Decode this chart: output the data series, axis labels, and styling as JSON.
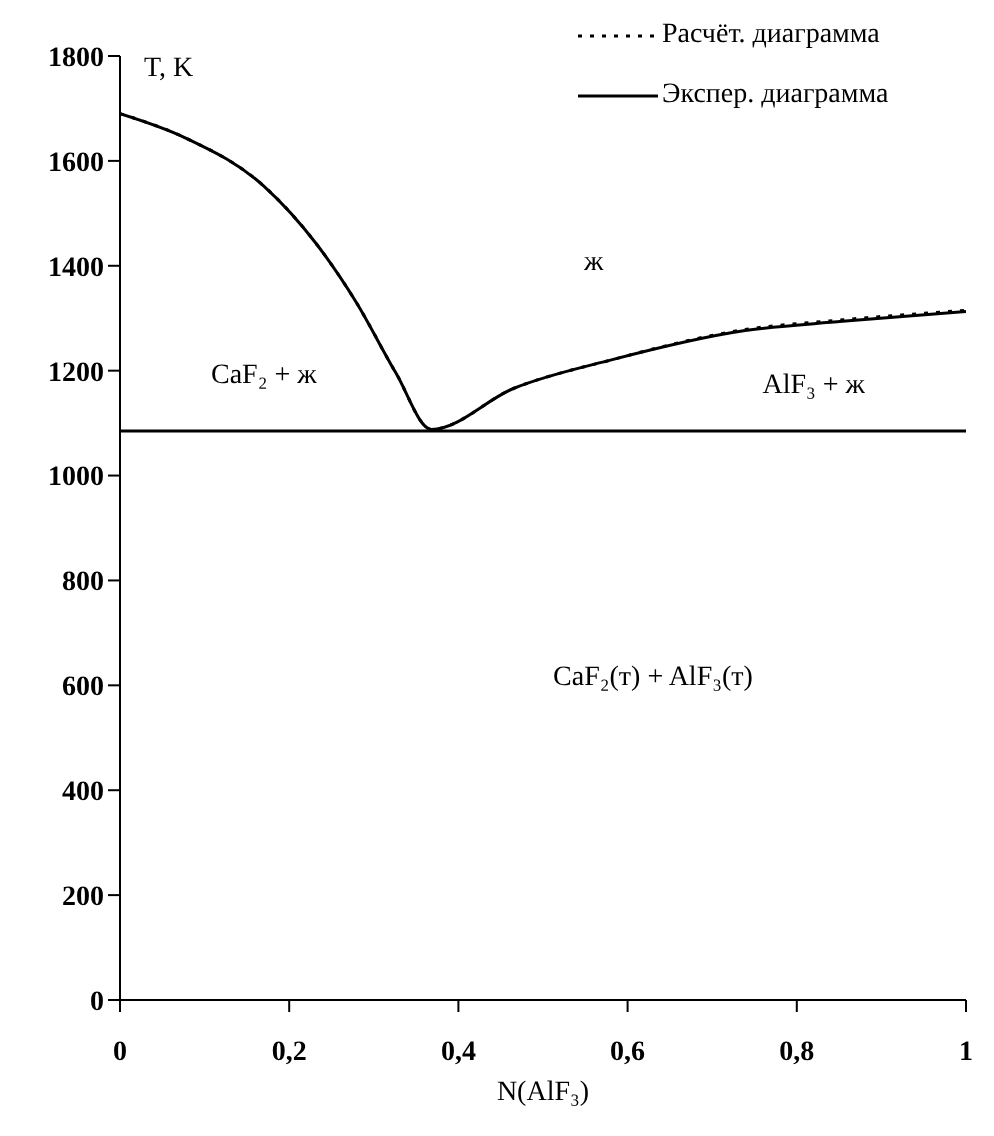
{
  "chart_data": {
    "type": "line",
    "xlabel": "N(AlF₃)",
    "ylabel": "T, K",
    "x": [
      0,
      0.077,
      0.17,
      0.232,
      0.279,
      0.326,
      0.368,
      0.465,
      0.582,
      0.737,
      0.854,
      1.0
    ],
    "series": [
      {
        "name": "Расчёт. диаграмма",
        "color": "#000000",
        "line_style": "dotted",
        "values": [
          1690,
          1644,
          1552,
          1442,
          1331,
          1196,
          1088,
          1166,
          1221,
          1278,
          1297,
          1315
        ]
      },
      {
        "name": "Экспер. диаграмма",
        "color": "#000000",
        "line_style": "solid",
        "values": [
          1690,
          1644,
          1552,
          1442,
          1331,
          1196,
          1088,
          1166,
          1221,
          1276,
          1294,
          1313
        ]
      }
    ],
    "xlim": [
      0,
      1
    ],
    "xticks": [
      0,
      {
        "value": 0.2,
        "label": "0,2"
      },
      {
        "value": 0.4,
        "label": "0,4"
      },
      {
        "value": 0.6,
        "label": "0,6"
      },
      {
        "value": 0.8,
        "label": "0,8"
      },
      1
    ],
    "ylim": [
      0,
      1800
    ],
    "yticks": [
      0,
      200,
      400,
      600,
      800,
      1000,
      1200,
      1400,
      1600,
      1800
    ],
    "ref_lines": [
      {
        "axis": "y",
        "value": 1085,
        "color": "#000000"
      }
    ],
    "annotations": [
      "ж",
      "CaF₂ + ж",
      "AlF₃ + ж",
      "CaF₂(т) + AlF₃(т)"
    ],
    "grid": false,
    "legend": "top right",
    "marker": "none"
  }
}
